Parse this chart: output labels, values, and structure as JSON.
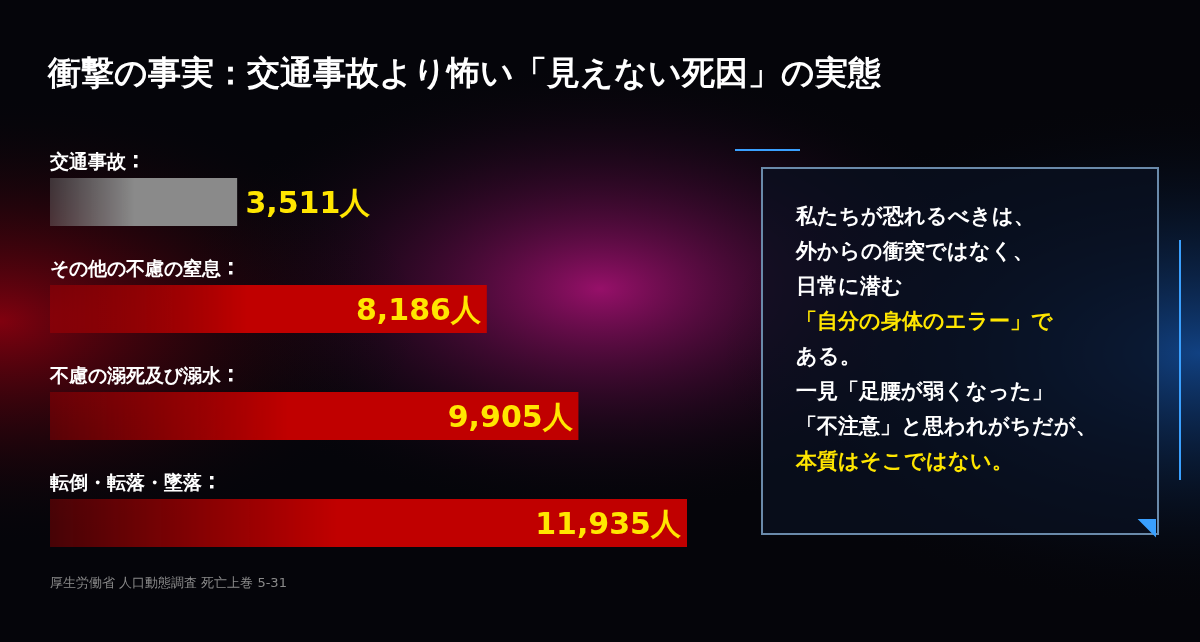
{
  "chart_data": [
    {
      "type": "bar",
      "orientation": "horizontal",
      "title": "衝撃の事実：交通事故より怖い「見えない死因」の実態",
      "categories": [
        "交通事故",
        "その他の不慮の窒息",
        "不慮の溺死及び溺水",
        "転倒・転落・墜落"
      ],
      "values": [
        3511,
        8186,
        9905,
        11935
      ],
      "value_labels": [
        "3,511人",
        "8,186人",
        "9,905人",
        "11,935人"
      ],
      "colors": [
        "#8a8a8a",
        "#c00000",
        "#c00000",
        "#c00000"
      ],
      "annotations": [
        "厚生労働省 人口動態調査 死亡上巻 5-31"
      ]
    },
    {
      "type": "other",
      "annotations": [
        "私たちが恐れるべきは、",
        "外からの衝突ではなく、",
        "日常に潜む",
        "「自分の身体のエラー」で",
        "ある。",
        "一見「足腰が弱くなった」",
        "「不注意」と思われがちだが、",
        "本質はそこではない。"
      ]
    }
  ]
}
